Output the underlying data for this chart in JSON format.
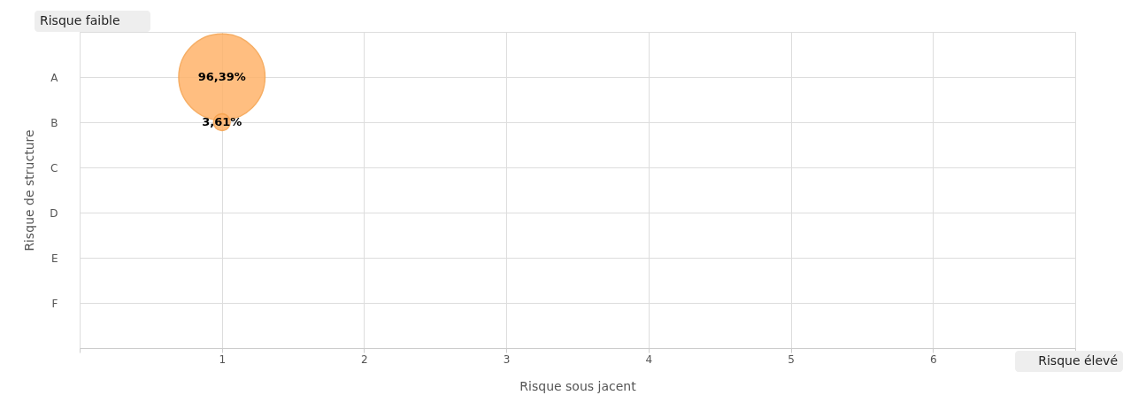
{
  "chart_data": {
    "type": "bubble",
    "orientation": "horizontal",
    "xlabel": "Risque sous jacent",
    "ylabel": "Risque de structure",
    "categories": [
      "A",
      "B",
      "C",
      "D",
      "E",
      "F"
    ],
    "values": [
      1,
      1,
      null,
      null,
      null,
      null
    ],
    "sizes": [
      1,
      0.0375,
      null,
      null,
      null,
      null
    ],
    "color": "#ffb36b",
    "xlim": [
      0,
      7
    ],
    "xticks": [
      {
        "value": 0,
        "label": null
      },
      1,
      2,
      3,
      4,
      5,
      6,
      {
        "value": 7,
        "label": null
      }
    ],
    "grid": true,
    "legend": false,
    "annotations": [
      "Risque faible",
      "Risque élevé",
      {
        "text": "96,39%",
        "x": 1,
        "y": "A"
      },
      {
        "text": "3,61%",
        "x": 1,
        "y": "B"
      }
    ]
  }
}
